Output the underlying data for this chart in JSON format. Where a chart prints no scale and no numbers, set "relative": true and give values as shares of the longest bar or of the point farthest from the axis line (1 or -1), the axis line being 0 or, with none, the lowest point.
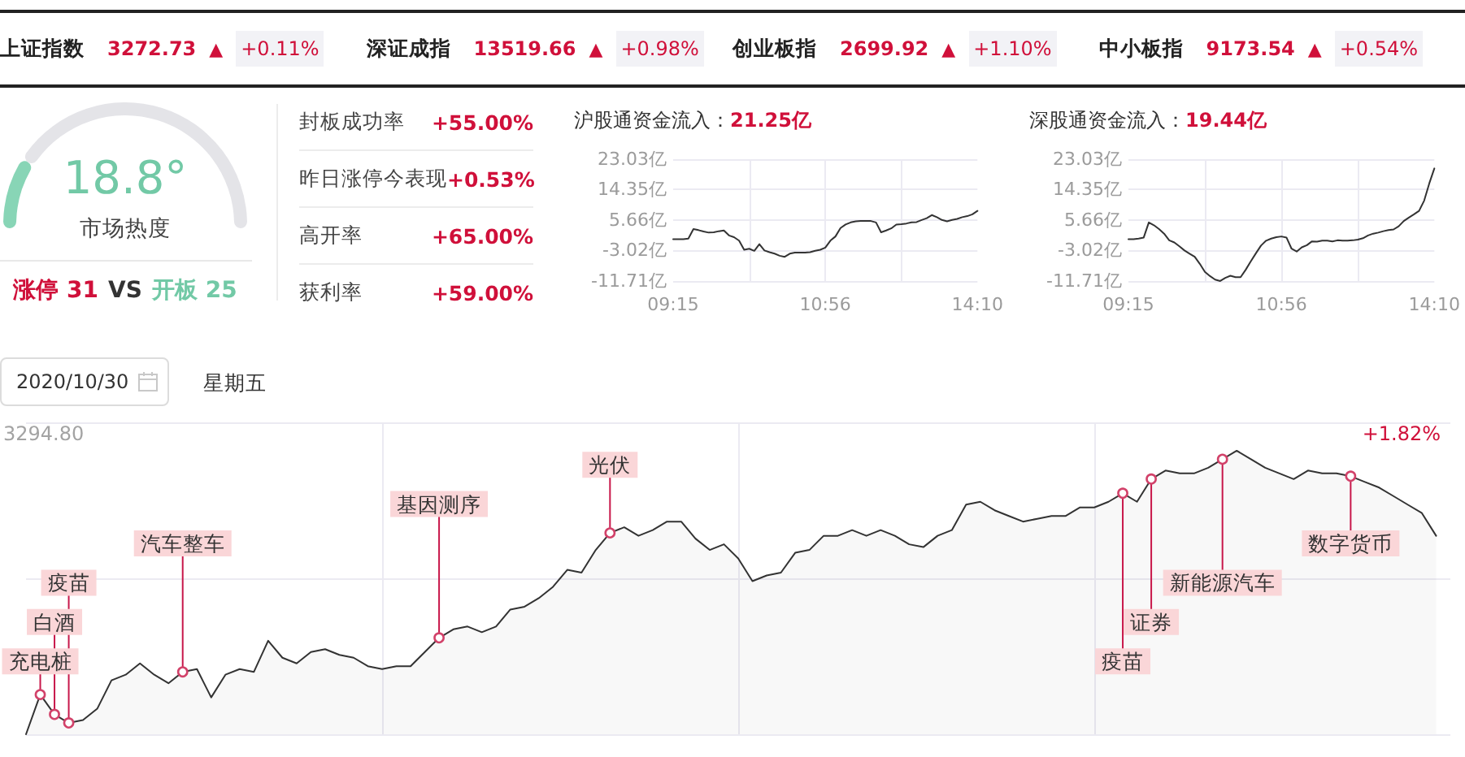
{
  "chart_data": [
    {
      "type": "other",
      "annotations": [
        "上证指数",
        "3272.73",
        "▲",
        "+0.11%",
        "深证成指",
        "13519.66",
        "▲",
        "+0.98%",
        "创业板指",
        "2699.92",
        "▲",
        "+1.10%",
        "中小板指",
        "9173.54",
        "▲",
        "+0.54%"
      ]
    },
    {
      "type": "donut",
      "categories": [
        null,
        null
      ],
      "values": [
        18.8,
        81.2
      ],
      "colors": [
        "#88d5b6",
        "#e4e4e8"
      ],
      "annotations": [
        "18.8°",
        "市场热度",
        "涨停 31",
        "VS",
        "开板 25"
      ]
    },
    {
      "type": "other",
      "annotations": [
        "封板成功率",
        "+55.00%",
        "昨日涨停今表现",
        "+0.53%",
        "高开率",
        "+65.00%",
        "获利率",
        "+59.00%"
      ]
    },
    {
      "type": "line",
      "title": "沪股通资金流入：",
      "annotations": [
        "21.25亿"
      ],
      "categories": [
        "09:15",
        null,
        null,
        null,
        null,
        null,
        null,
        null,
        null,
        null,
        null,
        null,
        null,
        null,
        null,
        null,
        null,
        null,
        null,
        null,
        null,
        null,
        null,
        null,
        null,
        null,
        null,
        null,
        null,
        null,
        "10:56",
        null,
        null,
        null,
        null,
        null,
        null,
        null,
        null,
        null,
        null,
        null,
        null,
        null,
        null,
        null,
        null,
        null,
        null,
        null,
        null,
        null,
        null,
        null,
        null,
        null,
        null,
        null,
        null,
        null,
        "14:10"
      ],
      "values": [
        0.2,
        0.2,
        0.2,
        0.4,
        3.1,
        2.8,
        2.4,
        2.1,
        2.2,
        2.5,
        2.7,
        1.3,
        0.8,
        -0.2,
        -2.8,
        -2.5,
        -3.1,
        -1.2,
        -3.0,
        -3.5,
        -3.9,
        -4.5,
        -4.8,
        -3.9,
        -3.6,
        -3.6,
        -3.6,
        -3.5,
        -3.1,
        -2.8,
        -2.2,
        -0.2,
        1.0,
        3.4,
        4.4,
        5.0,
        5.3,
        5.4,
        5.4,
        5.4,
        5.0,
        2.2,
        2.7,
        3.3,
        4.4,
        4.5,
        4.7,
        5.0,
        5.1,
        5.7,
        6.2,
        7.1,
        6.5,
        5.7,
        5.3,
        5.7,
        6.0,
        6.5,
        6.8,
        7.3,
        8.3
      ],
      "color": "#333333",
      "ylim": [
        -11.71,
        23.03
      ],
      "yticks": [
        {
          "value": -11.71,
          "label": "-11.71亿"
        },
        {
          "value": -3.02,
          "label": "-3.02亿"
        },
        {
          "value": 5.66,
          "label": "5.66亿"
        },
        {
          "value": 14.35,
          "label": "14.35亿"
        },
        {
          "value": 23.03,
          "label": "23.03亿"
        }
      ],
      "grid": true
    },
    {
      "type": "line",
      "title": "深股通资金流入：",
      "annotations": [
        "19.44亿"
      ],
      "categories": [
        "09:15",
        null,
        null,
        null,
        null,
        null,
        null,
        null,
        null,
        null,
        null,
        null,
        null,
        null,
        null,
        null,
        null,
        null,
        null,
        null,
        null,
        null,
        null,
        null,
        null,
        null,
        null,
        null,
        null,
        null,
        "10:56",
        null,
        null,
        null,
        null,
        null,
        null,
        null,
        null,
        null,
        null,
        null,
        null,
        null,
        null,
        null,
        null,
        null,
        null,
        null,
        null,
        null,
        null,
        null,
        null,
        null,
        null,
        null,
        null,
        null,
        "14:10"
      ],
      "values": [
        0.2,
        0.2,
        0.4,
        0.7,
        5.0,
        4.2,
        3.1,
        1.8,
        -0.1,
        -0.7,
        -1.8,
        -3.0,
        -3.9,
        -4.8,
        -6.8,
        -9.1,
        -10.3,
        -11.3,
        -11.7,
        -10.8,
        -10.2,
        -10.6,
        -10.6,
        -8.5,
        -6.1,
        -3.8,
        -1.6,
        -0.2,
        0.4,
        0.8,
        1.0,
        0.7,
        -2.5,
        -3.3,
        -2.1,
        -1.5,
        -0.4,
        -0.5,
        -0.2,
        -0.2,
        -0.4,
        -0.1,
        -0.2,
        -0.2,
        -0.1,
        0.1,
        0.5,
        1.3,
        1.8,
        2.1,
        2.5,
        2.8,
        3.0,
        3.9,
        5.4,
        6.4,
        7.3,
        8.3,
        11.2,
        16.1,
        20.4
      ],
      "color": "#333333",
      "ylim": [
        -11.71,
        23.03
      ],
      "yticks": [
        {
          "value": -11.71,
          "label": "-11.71亿"
        },
        {
          "value": -3.02,
          "label": "-3.02亿"
        },
        {
          "value": 5.66,
          "label": "5.66亿"
        },
        {
          "value": 14.35,
          "label": "14.35亿"
        },
        {
          "value": 23.03,
          "label": "23.03亿"
        }
      ],
      "grid": true
    },
    {
      "type": "area",
      "title": "2020/10/30",
      "subtitle": "星期五",
      "relative": true,
      "grid": true,
      "color": "#333333",
      "categories": [
        null,
        null,
        null,
        null,
        null,
        null,
        null,
        null,
        null,
        null,
        null,
        null,
        null,
        null,
        null,
        null,
        null,
        null,
        null,
        null,
        null,
        null,
        null,
        null,
        null,
        null,
        null,
        null,
        null,
        null,
        null,
        null,
        null,
        null,
        null,
        null,
        null,
        null,
        null,
        null,
        null,
        null,
        null,
        null,
        null,
        null,
        null,
        null,
        null,
        null,
        null,
        null,
        null,
        null,
        null,
        null,
        null,
        null,
        null,
        null,
        null,
        null,
        null,
        null,
        null,
        null,
        null,
        null,
        null,
        null,
        null,
        null,
        null,
        null,
        null,
        null,
        null,
        null,
        null,
        null,
        null,
        null,
        null,
        null,
        null,
        null,
        null,
        null,
        null,
        null,
        null,
        null,
        null,
        null,
        null,
        null,
        null,
        null,
        null,
        null,
        null
      ],
      "values": [
        0,
        0.14,
        0.07,
        0.04,
        0.05,
        0.09,
        0.19,
        0.21,
        0.25,
        0.21,
        0.18,
        0.22,
        0.23,
        0.13,
        0.21,
        0.23,
        0.22,
        0.33,
        0.27,
        0.25,
        0.29,
        0.3,
        0.28,
        0.27,
        0.24,
        0.23,
        0.24,
        0.24,
        0.29,
        0.34,
        0.37,
        0.38,
        0.36,
        0.38,
        0.44,
        0.45,
        0.48,
        0.52,
        0.58,
        0.57,
        0.65,
        0.71,
        0.73,
        0.7,
        0.72,
        0.75,
        0.75,
        0.69,
        0.65,
        0.67,
        0.62,
        0.54,
        0.56,
        0.57,
        0.64,
        0.65,
        0.7,
        0.7,
        0.72,
        0.7,
        0.72,
        0.7,
        0.67,
        0.66,
        0.7,
        0.72,
        0.81,
        0.82,
        0.79,
        0.77,
        0.75,
        0.76,
        0.77,
        0.77,
        0.8,
        0.8,
        0.82,
        0.85,
        0.82,
        0.9,
        0.93,
        0.92,
        0.92,
        0.94,
        0.97,
        1,
        0.97,
        0.94,
        0.92,
        0.9,
        0.93,
        0.92,
        0.92,
        0.91,
        0.89,
        0.87,
        0.84,
        0.81,
        0.78,
        0.7,
        null
      ],
      "annotations": [
        "3294.80",
        "+1.82%",
        {
          "text": "充电桩",
          "y": 0.14
        },
        {
          "text": "白酒",
          "y": 0.07
        },
        {
          "text": "疫苗",
          "y": 0.04
        },
        {
          "text": "汽车整车",
          "y": 0.22
        },
        {
          "text": "基因测序",
          "y": 0.34
        },
        {
          "text": "光伏",
          "y": 0.71
        },
        {
          "text": "疫苗",
          "y": 0.85
        },
        {
          "text": "证券",
          "y": 0.9
        },
        {
          "text": "新能源汽车",
          "y": 0.97
        },
        {
          "text": "数字货币",
          "y": 0.91
        }
      ]
    }
  ]
}
